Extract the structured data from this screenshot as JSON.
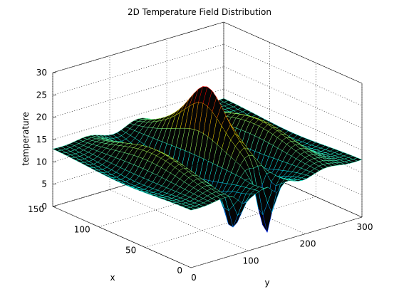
{
  "chart_data": {
    "type": "surface",
    "title": "2D Temperature Field Distribution",
    "xlabel": "x",
    "ylabel": "y",
    "zlabel": "temperature",
    "x_ticks": [
      0,
      50,
      100,
      150
    ],
    "y_ticks": [
      0,
      100,
      200,
      300
    ],
    "z_ticks": [
      0,
      5,
      10,
      15,
      20,
      25,
      30
    ],
    "xlim": [
      0,
      150
    ],
    "ylim": [
      0,
      300
    ],
    "zlim": [
      0,
      30
    ],
    "grid": true,
    "colormap": "jet",
    "mesh_edge_color": "#000000",
    "base_level": 13,
    "features": [
      {
        "kind": "peak",
        "x": 75,
        "y": 150,
        "z_peak": 28.5
      },
      {
        "kind": "ridge",
        "x": 75,
        "y": 200,
        "z_peak": 24
      },
      {
        "kind": "peak",
        "x": 75,
        "y": 100,
        "z_peak": 20
      },
      {
        "kind": "trough",
        "x": 10,
        "y": 150,
        "z_min": -5
      },
      {
        "kind": "trough",
        "x": 10,
        "y": 90,
        "z_min": 1
      }
    ]
  }
}
